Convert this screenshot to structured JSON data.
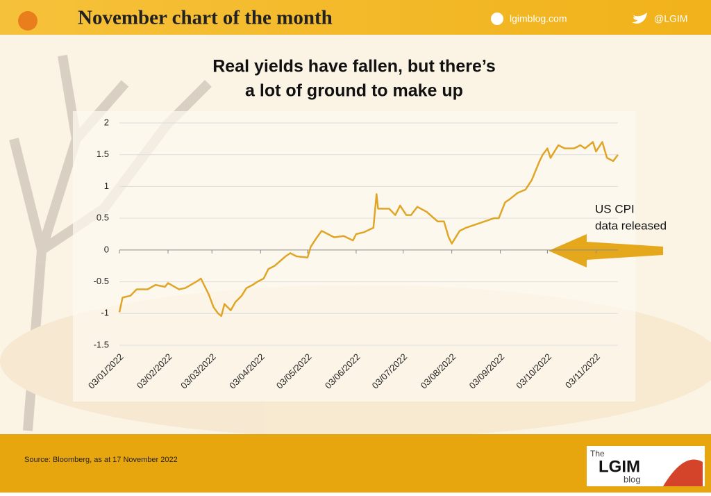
{
  "header": {
    "title": "November chart of the month",
    "site": "lgimblog.com",
    "handle": "@LGIM"
  },
  "chart_data": {
    "type": "line",
    "title_lines": [
      "Real yields have fallen, but there’s",
      "a lot of ground to make up"
    ],
    "x": [
      "2022-01-03",
      "2022-01-05",
      "2022-01-10",
      "2022-01-14",
      "2022-01-21",
      "2022-01-26",
      "2022-02-01",
      "2022-02-03",
      "2022-02-10",
      "2022-02-14",
      "2022-02-21",
      "2022-02-24",
      "2022-03-01",
      "2022-03-04",
      "2022-03-07",
      "2022-03-09",
      "2022-03-11",
      "2022-03-15",
      "2022-03-18",
      "2022-03-22",
      "2022-03-25",
      "2022-03-29",
      "2022-04-01",
      "2022-04-05",
      "2022-04-08",
      "2022-04-12",
      "2022-04-19",
      "2022-04-22",
      "2022-04-26",
      "2022-05-03",
      "2022-05-05",
      "2022-05-09",
      "2022-05-12",
      "2022-05-16",
      "2022-05-20",
      "2022-05-26",
      "2022-06-01",
      "2022-06-03",
      "2022-06-08",
      "2022-06-14",
      "2022-06-16",
      "2022-06-17",
      "2022-06-24",
      "2022-06-28",
      "2022-07-01",
      "2022-07-05",
      "2022-07-08",
      "2022-07-12",
      "2022-07-18",
      "2022-07-25",
      "2022-07-29",
      "2022-08-01",
      "2022-08-03",
      "2022-08-08",
      "2022-08-12",
      "2022-08-18",
      "2022-08-24",
      "2022-08-30",
      "2022-09-02",
      "2022-09-06",
      "2022-09-09",
      "2022-09-14",
      "2022-09-19",
      "2022-09-23",
      "2022-09-28",
      "2022-09-30",
      "2022-10-03",
      "2022-10-05",
      "2022-10-10",
      "2022-10-14",
      "2022-10-20",
      "2022-10-24",
      "2022-10-27",
      "2022-11-01",
      "2022-11-03",
      "2022-11-07",
      "2022-11-10",
      "2022-11-14",
      "2022-11-17"
    ],
    "series": [
      {
        "color": "#e0a526",
        "values": [
          -0.98,
          -0.75,
          -0.72,
          -0.62,
          -0.62,
          -0.55,
          -0.58,
          -0.52,
          -0.62,
          -0.6,
          -0.5,
          -0.45,
          -0.7,
          -0.9,
          -1.0,
          -1.04,
          -0.85,
          -0.95,
          -0.82,
          -0.72,
          -0.6,
          -0.55,
          -0.5,
          -0.45,
          -0.3,
          -0.25,
          -0.1,
          -0.05,
          -0.1,
          -0.12,
          0.05,
          0.2,
          0.3,
          0.25,
          0.2,
          0.22,
          0.15,
          0.25,
          0.28,
          0.35,
          0.88,
          0.65,
          0.65,
          0.55,
          0.7,
          0.55,
          0.55,
          0.68,
          0.6,
          0.45,
          0.45,
          0.2,
          0.1,
          0.3,
          0.35,
          0.4,
          0.45,
          0.5,
          0.5,
          0.75,
          0.8,
          0.9,
          0.95,
          1.1,
          1.4,
          1.5,
          1.6,
          1.45,
          1.65,
          1.6,
          1.6,
          1.65,
          1.6,
          1.7,
          1.55,
          1.7,
          1.45,
          1.4,
          1.5
        ]
      }
    ],
    "xlim": [
      "2022-01-03",
      "2022-11-17"
    ],
    "xticks": [
      {
        "value": "2022-01-03",
        "label": "03/01/2022"
      },
      {
        "value": "2022-02-03",
        "label": "03/02/2022"
      },
      {
        "value": "2022-03-03",
        "label": "03/03/2022"
      },
      {
        "value": "2022-04-03",
        "label": "03/04/2022"
      },
      {
        "value": "2022-05-03",
        "label": "03/05/2022"
      },
      {
        "value": "2022-06-03",
        "label": "03/06/2022"
      },
      {
        "value": "2022-07-03",
        "label": "03/07/2022"
      },
      {
        "value": "2022-08-03",
        "label": "03/08/2022"
      },
      {
        "value": "2022-09-03",
        "label": "03/09/2022"
      },
      {
        "value": "2022-10-03",
        "label": "03/10/2022"
      },
      {
        "value": "2022-11-03",
        "label": "03/11/2022"
      }
    ],
    "ylim": [
      -1.5,
      2
    ],
    "yticks": [
      2,
      1.5,
      1,
      0.5,
      0,
      -0.5,
      -1,
      -1.5
    ],
    "grid": true,
    "annotation_lines": [
      "US CPI",
      "data released"
    ]
  },
  "footer": {
    "source": "Source: Bloomberg, as at 17 November 2022",
    "logo_top": "The",
    "logo_main": "LGIM",
    "logo_bottom": "blog"
  }
}
